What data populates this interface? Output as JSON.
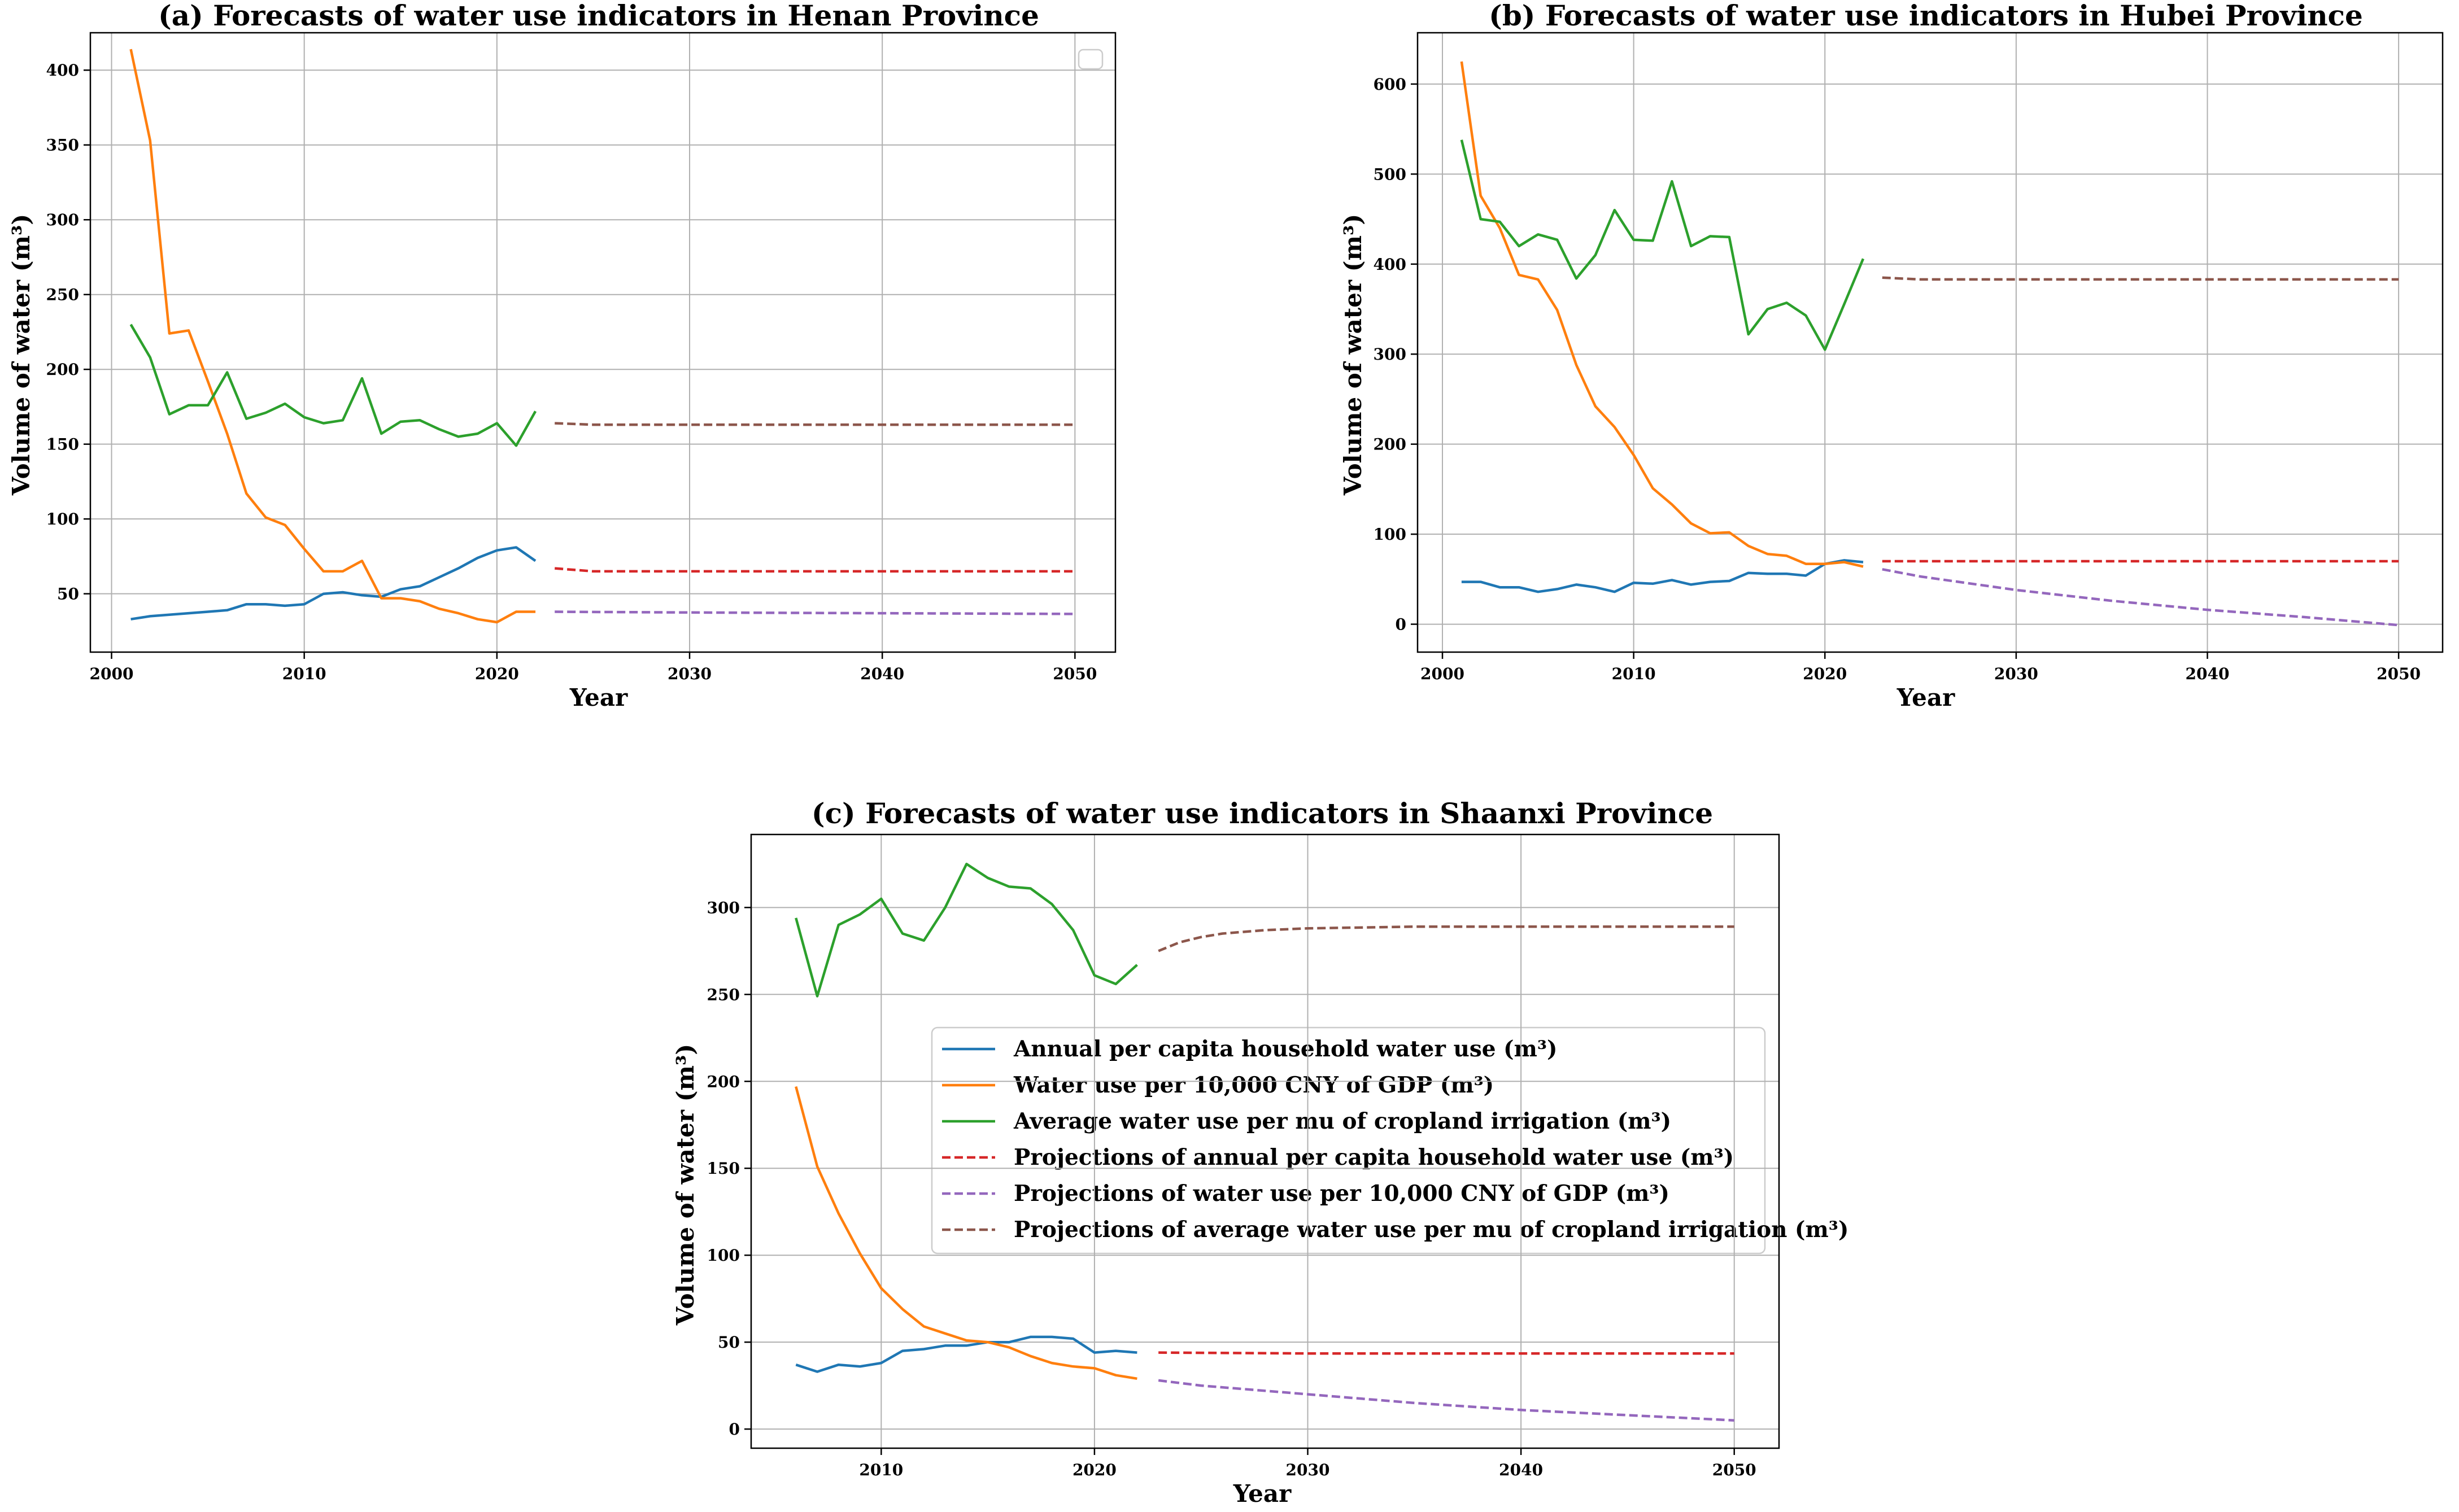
{
  "chart_data": [
    {
      "type": "line",
      "title": "(a) Forecasts of water use indicators in Henan Province",
      "xlabel": "Year",
      "ylabel": "Volume of water (m³)",
      "xlim": [
        1998.9,
        2052.1
      ],
      "ylim": [
        11,
        425
      ],
      "xticks": [
        2000,
        2010,
        2020,
        2030,
        2040,
        2050
      ],
      "yticks": [
        50,
        100,
        150,
        200,
        250,
        300,
        350,
        400
      ],
      "grid": true,
      "legend": "top-right (empty)",
      "series": [
        {
          "name": "Annual per capita household water use (m³)",
          "color": "#1f77b4",
          "style": "solid",
          "x": [
            2001,
            2002,
            2003,
            2004,
            2005,
            2006,
            2007,
            2008,
            2009,
            2010,
            2011,
            2012,
            2013,
            2014,
            2015,
            2016,
            2017,
            2018,
            2019,
            2020,
            2021,
            2022
          ],
          "y": [
            33,
            35,
            36,
            37,
            38,
            39,
            43,
            43,
            42,
            43,
            50,
            51,
            49,
            48,
            53,
            55,
            61,
            67,
            74,
            79,
            81,
            72
          ]
        },
        {
          "name": "Water use per 10,000 CNY of GDP (m³)",
          "color": "#ff7f0e",
          "style": "solid",
          "x": [
            2001,
            2002,
            2003,
            2004,
            2005,
            2006,
            2007,
            2008,
            2009,
            2010,
            2011,
            2012,
            2013,
            2014,
            2015,
            2016,
            2017,
            2018,
            2019,
            2020,
            2021,
            2022
          ],
          "y": [
            414,
            353,
            224,
            226,
            192,
            157,
            117,
            101,
            96,
            80,
            65,
            65,
            72,
            47,
            47,
            45,
            40,
            37,
            33,
            31,
            38,
            38
          ]
        },
        {
          "name": "Average water use per mu of cropland irrigation (m³)",
          "color": "#2ca02c",
          "style": "solid",
          "x": [
            2001,
            2002,
            2003,
            2004,
            2005,
            2006,
            2007,
            2008,
            2009,
            2010,
            2011,
            2012,
            2013,
            2014,
            2015,
            2016,
            2017,
            2018,
            2019,
            2020,
            2021,
            2022
          ],
          "y": [
            230,
            208,
            170,
            176,
            176,
            198,
            167,
            171,
            177,
            168,
            164,
            166,
            194,
            157,
            165,
            166,
            160,
            155,
            157,
            164,
            149,
            172
          ]
        },
        {
          "name": "Projections of annual per capita household water use (m³)",
          "color": "#d62728",
          "style": "dashed",
          "x": [
            2023,
            2024,
            2025,
            2026,
            2027,
            2030,
            2035,
            2040,
            2045,
            2050
          ],
          "y": [
            67,
            66,
            65,
            65,
            65,
            65,
            65,
            65,
            65,
            65
          ]
        },
        {
          "name": "Projections of water use per 10,000 CNY of GDP (m³)",
          "color": "#9467bd",
          "style": "dashed",
          "x": [
            2023,
            2030,
            2040,
            2050
          ],
          "y": [
            38,
            37.5,
            37,
            36.5
          ]
        },
        {
          "name": "Projections of average water use per mu of cropland irrigation (m³)",
          "color": "#8c564b",
          "style": "dashed",
          "x": [
            2023,
            2025,
            2030,
            2040,
            2050
          ],
          "y": [
            164,
            163,
            163,
            163,
            163
          ]
        }
      ]
    },
    {
      "type": "line",
      "title": "(b) Forecasts of water use indicators in Hubei Province",
      "xlabel": "Year",
      "ylabel": "Volume of water (m³)",
      "xlim": [
        1998.7,
        2052.3
      ],
      "ylim": [
        -31,
        657
      ],
      "xticks": [
        2000,
        2010,
        2020,
        2030,
        2040,
        2050
      ],
      "yticks": [
        0,
        100,
        200,
        300,
        400,
        500,
        600
      ],
      "grid": true,
      "series": [
        {
          "name": "Annual per capita household water use (m³)",
          "color": "#1f77b4",
          "style": "solid",
          "x": [
            2001,
            2002,
            2003,
            2004,
            2005,
            2006,
            2007,
            2008,
            2009,
            2010,
            2011,
            2012,
            2013,
            2014,
            2015,
            2016,
            2017,
            2018,
            2019,
            2020,
            2021,
            2022
          ],
          "y": [
            47,
            47,
            41,
            41,
            36,
            39,
            44,
            41,
            36,
            46,
            45,
            49,
            44,
            47,
            48,
            57,
            56,
            56,
            54,
            67,
            71,
            69
          ]
        },
        {
          "name": "Water use per 10,000 CNY of GDP (m³)",
          "color": "#ff7f0e",
          "style": "solid",
          "x": [
            2001,
            2002,
            2003,
            2004,
            2005,
            2006,
            2007,
            2008,
            2009,
            2010,
            2011,
            2012,
            2013,
            2014,
            2015,
            2016,
            2017,
            2018,
            2019,
            2020,
            2021,
            2022
          ],
          "y": [
            625,
            476,
            440,
            388,
            383,
            349,
            288,
            242,
            219,
            188,
            151,
            133,
            112,
            101,
            102,
            87,
            78,
            76,
            67,
            67,
            69,
            64
          ]
        },
        {
          "name": "Average water use per mu of cropland irrigation (m³)",
          "color": "#2ca02c",
          "style": "solid",
          "x": [
            2001,
            2002,
            2003,
            2004,
            2005,
            2006,
            2007,
            2008,
            2009,
            2010,
            2011,
            2012,
            2013,
            2014,
            2015,
            2016,
            2017,
            2018,
            2019,
            2020,
            2021,
            2022
          ],
          "y": [
            538,
            450,
            447,
            420,
            433,
            427,
            384,
            410,
            460,
            427,
            426,
            492,
            420,
            431,
            430,
            322,
            350,
            357,
            343,
            305,
            355,
            406
          ]
        },
        {
          "name": "Projections of annual per capita household water use (m³)",
          "color": "#d62728",
          "style": "dashed",
          "x": [
            2023,
            2030,
            2040,
            2050
          ],
          "y": [
            70,
            70,
            70,
            70
          ]
        },
        {
          "name": "Projections of water use per 10,000 CNY of GDP (m³)",
          "color": "#9467bd",
          "style": "dashed",
          "x": [
            2023,
            2025,
            2030,
            2035,
            2040,
            2045,
            2050
          ],
          "y": [
            61,
            53,
            38,
            26,
            16,
            8,
            -1
          ]
        },
        {
          "name": "Projections of average water use per mu of cropland irrigation (m³)",
          "color": "#8c564b",
          "style": "dashed",
          "x": [
            2023,
            2025,
            2030,
            2040,
            2050
          ],
          "y": [
            385,
            383,
            383,
            383,
            383
          ]
        }
      ]
    },
    {
      "type": "line",
      "title": "(c) Forecasts of water use indicators in Shaanxi Province",
      "xlabel": "Year",
      "ylabel": "Volume of water (m³)",
      "xlim": [
        2003.9,
        2052.1
      ],
      "ylim": [
        -11,
        342
      ],
      "xticks": [
        2010,
        2020,
        2030,
        2040,
        2050
      ],
      "yticks": [
        0,
        50,
        100,
        150,
        200,
        250,
        300
      ],
      "grid": true,
      "legend": "center-right",
      "series": [
        {
          "name": "Annual per capita household water use (m³)",
          "color": "#1f77b4",
          "style": "solid",
          "x": [
            2006,
            2007,
            2008,
            2009,
            2010,
            2011,
            2012,
            2013,
            2014,
            2015,
            2016,
            2017,
            2018,
            2019,
            2020,
            2021,
            2022
          ],
          "y": [
            37,
            33,
            37,
            36,
            38,
            45,
            46,
            48,
            48,
            50,
            50,
            53,
            53,
            52,
            44,
            45,
            44
          ]
        },
        {
          "name": "Water use per 10,000 CNY of GDP (m³)",
          "color": "#ff7f0e",
          "style": "solid",
          "x": [
            2006,
            2007,
            2008,
            2009,
            2010,
            2011,
            2012,
            2013,
            2014,
            2015,
            2016,
            2017,
            2018,
            2019,
            2020,
            2021,
            2022
          ],
          "y": [
            197,
            151,
            124,
            101,
            81,
            69,
            59,
            55,
            51,
            50,
            47,
            42,
            38,
            36,
            35,
            31,
            29
          ]
        },
        {
          "name": "Average water use per mu of cropland irrigation (m³)",
          "color": "#2ca02c",
          "style": "solid",
          "x": [
            2006,
            2007,
            2008,
            2009,
            2010,
            2011,
            2012,
            2013,
            2014,
            2015,
            2016,
            2017,
            2018,
            2019,
            2020,
            2021,
            2022
          ],
          "y": [
            294,
            249,
            290,
            296,
            305,
            285,
            281,
            300,
            325,
            317,
            312,
            311,
            302,
            287,
            261,
            256,
            267
          ]
        },
        {
          "name": "Projections of annual per capita household water use (m³)",
          "color": "#d62728",
          "style": "dashed",
          "x": [
            2023,
            2030,
            2040,
            2050
          ],
          "y": [
            44,
            43.5,
            43.5,
            43.5
          ]
        },
        {
          "name": "Projections of water use per 10,000 CNY of GDP (m³)",
          "color": "#9467bd",
          "style": "dashed",
          "x": [
            2023,
            2025,
            2030,
            2035,
            2040,
            2045,
            2050
          ],
          "y": [
            28,
            25,
            20,
            15,
            11,
            8,
            5
          ]
        },
        {
          "name": "Projections of average water use per mu of cropland irrigation (m³)",
          "color": "#8c564b",
          "style": "dashed",
          "x": [
            2023,
            2024,
            2025,
            2026,
            2028,
            2030,
            2035,
            2040,
            2045,
            2050
          ],
          "y": [
            275,
            280,
            283,
            285,
            287,
            288,
            289,
            289,
            289,
            289
          ]
        }
      ]
    }
  ]
}
